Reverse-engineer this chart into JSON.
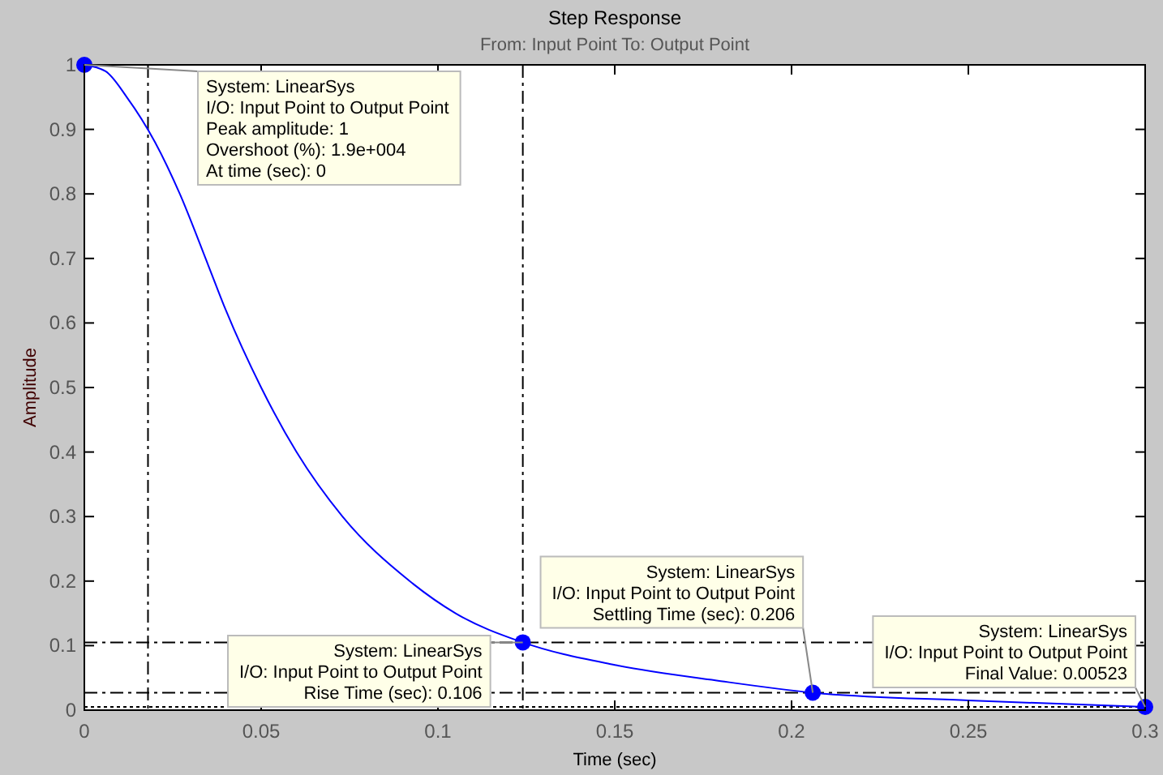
{
  "chart_data": {
    "type": "line",
    "title": "Step Response",
    "subtitle": "From: Input Point  To: Output Point",
    "xlabel": "Time (sec)",
    "ylabel": "Amplitude",
    "xlim": [
      0,
      0.3
    ],
    "xticks": [
      0,
      0.05,
      0.1,
      0.15,
      0.2,
      0.25,
      0.3
    ],
    "ylim": [
      0,
      1
    ],
    "yticks": [
      0,
      0.1,
      0.2,
      0.3,
      0.4,
      0.5,
      0.6,
      0.7,
      0.8,
      0.9,
      1
    ],
    "grid": false,
    "legend": false,
    "series": [
      {
        "color": "#0000ff",
        "marker": "none",
        "line_style": "solid",
        "x": [
          0,
          0.006,
          0.012,
          0.02,
          0.027,
          0.035,
          0.04,
          0.05,
          0.06,
          0.073,
          0.092,
          0.105,
          0.124,
          0.15,
          0.18,
          0.206,
          0.25,
          0.3
        ],
        "values": [
          1,
          0.99,
          0.95,
          0.88,
          0.8,
          0.69,
          0.62,
          0.5,
          0.4,
          0.3,
          0.2,
          0.15,
          0.105,
          0.07,
          0.045,
          0.027,
          0.015,
          0.005
        ]
      },
      {
        "type": "scatter",
        "color": "#0000ff",
        "marker": "circle",
        "x": [
          0,
          0.124,
          0.206,
          0.3
        ],
        "values": [
          1,
          0.105,
          0.027,
          0.005
        ]
      }
    ],
    "ref_lines": [
      {
        "axis": "y",
        "value": 0.105,
        "color": "#000000",
        "line_style": "dashed"
      },
      {
        "axis": "y",
        "value": 0.027,
        "color": "#000000",
        "line_style": "dashed"
      },
      {
        "axis": "y",
        "value": 0.005,
        "color": "#000000",
        "line_style": "dotted"
      },
      {
        "axis": "x",
        "value": 0.018,
        "color": "#000000",
        "line_style": "dashed"
      },
      {
        "axis": "x",
        "value": 0.124,
        "color": "#000000",
        "line_style": "dashed"
      }
    ],
    "annotations": [
      {
        "text": "System: LinearSys\nI/O: Input Point to Output Point\nPeak amplitude: 1\nOvershoot (%): 1.9e+004\nAt time (sec): 0",
        "x": 0,
        "y": 1
      },
      {
        "text": "System: LinearSys\nI/O: Input Point to Output Point\nRise Time (sec): 0.106",
        "x": 0.124,
        "y": 0.105
      },
      {
        "text": "System: LinearSys\nI/O: Input Point to Output Point\nSettling Time (sec): 0.206",
        "x": 0.206,
        "y": 0.027
      },
      {
        "text": "System: LinearSys\nI/O: Input Point to Output Point\nFinal Value: 0.00523",
        "x": 0.3,
        "y": 0.005
      }
    ]
  }
}
